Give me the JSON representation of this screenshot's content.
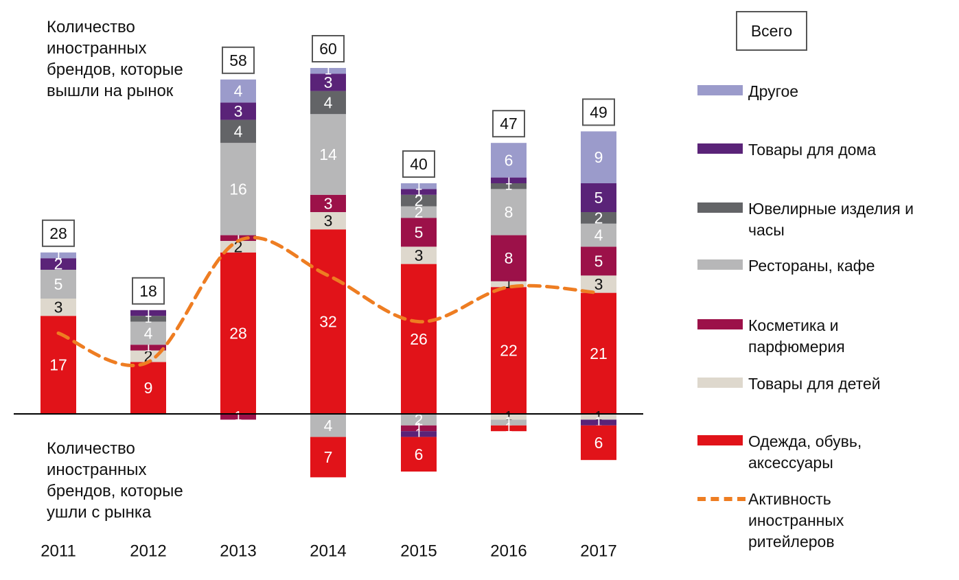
{
  "annotations": {
    "entered": "Количество\nиностранных\nбрендов, которые\nвышли на рынок",
    "exited": "Количество\nиностранных\nбрендов, которые\nушли с рынка"
  },
  "legend": {
    "total_label": "Всего",
    "items": [
      {
        "key": "other",
        "label": "Другое",
        "color": "#9b9bcb"
      },
      {
        "key": "home",
        "label": "Товары для дома",
        "color": "#5a2378"
      },
      {
        "key": "jewelry",
        "label": "Ювелирные изделия и\nчасы",
        "color": "#636467"
      },
      {
        "key": "restaurants",
        "label": "Рестораны, кафе",
        "color": "#b7b7b8"
      },
      {
        "key": "cosmetics",
        "label": "Косметика и\nпарфюмерия",
        "color": "#9c1149"
      },
      {
        "key": "kids",
        "label": "Товары для детей",
        "color": "#ded8cd"
      },
      {
        "key": "clothing",
        "label": "Одежда, обувь,\nаксессуары",
        "color": "#e11319"
      }
    ],
    "line_label": "Активность\nиностранных\nритейлеров",
    "line_color": "#ee7d22"
  },
  "chart_data": {
    "type": "bar",
    "stacked": true,
    "categories": [
      "2011",
      "2012",
      "2013",
      "2014",
      "2015",
      "2016",
      "2017"
    ],
    "totals": [
      28,
      18,
      58,
      60,
      40,
      47,
      49
    ],
    "entered": [
      {
        "key": "clothing",
        "values": [
          17,
          9,
          28,
          32,
          26,
          22,
          21
        ]
      },
      {
        "key": "kids",
        "values": [
          3,
          2,
          2,
          3,
          3,
          1,
          3
        ]
      },
      {
        "key": "cosmetics",
        "values": [
          0,
          1,
          1,
          3,
          5,
          8,
          5
        ]
      },
      {
        "key": "restaurants",
        "values": [
          5,
          4,
          16,
          14,
          2,
          8,
          4
        ]
      },
      {
        "key": "jewelry",
        "values": [
          0,
          1,
          4,
          4,
          2,
          1,
          2
        ]
      },
      {
        "key": "home",
        "values": [
          2,
          1,
          3,
          3,
          1,
          1,
          5
        ]
      },
      {
        "key": "other",
        "values": [
          1,
          0,
          4,
          1,
          1,
          6,
          9
        ]
      }
    ],
    "exited": [
      {
        "key": "kids",
        "values": [
          0,
          0,
          0,
          0,
          0,
          1,
          1
        ]
      },
      {
        "key": "restaurants",
        "values": [
          0,
          0,
          0,
          4,
          2,
          1,
          0
        ]
      },
      {
        "key": "cosmetics",
        "values": [
          0,
          0,
          1,
          0,
          1,
          0,
          0
        ]
      },
      {
        "key": "home",
        "values": [
          0,
          0,
          0,
          0,
          1,
          0,
          1
        ]
      },
      {
        "key": "clothing",
        "values": [
          0,
          0,
          0,
          7,
          6,
          1,
          6
        ]
      }
    ],
    "activity_line": {
      "name": "Активность иностранных ритейлеров",
      "values": [
        14,
        9,
        30,
        24,
        16,
        22,
        21
      ]
    }
  }
}
